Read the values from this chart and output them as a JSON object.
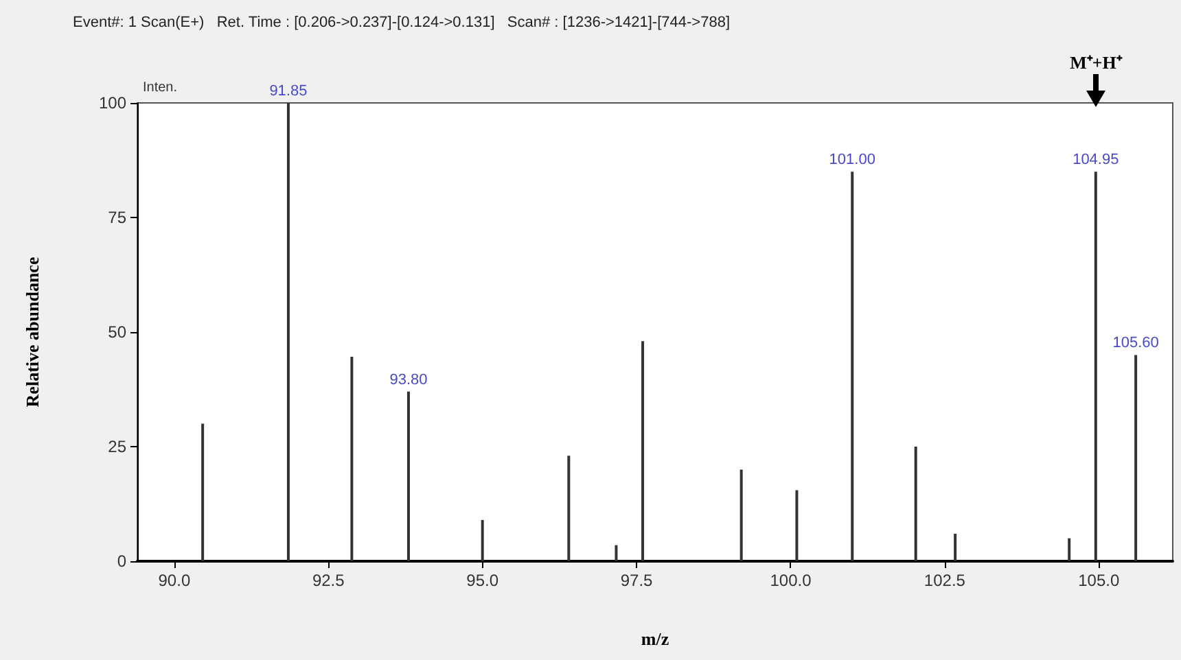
{
  "chart_data": {
    "type": "bar",
    "title": "Event#: 1 Scan(E+)   Ret. Time : [0.206->0.237]-[0.124->0.131]   Scan# : [1236->1421]-[744->788]",
    "xlabel": "m/z",
    "ylabel": "Relative abundance",
    "x": [
      90.46,
      91.85,
      92.88,
      93.8,
      95.0,
      96.4,
      97.17,
      97.6,
      99.2,
      100.1,
      101.0,
      102.03,
      102.67,
      104.52,
      104.95,
      105.6
    ],
    "values": [
      30,
      100,
      44.6,
      37,
      9,
      23,
      3.5,
      48,
      20,
      15.5,
      85,
      25,
      6,
      5,
      85,
      45
    ],
    "color": "#333333",
    "xlim": [
      89.4,
      106.2
    ],
    "xticks": [
      {
        "value": 90,
        "label": "90.0"
      },
      {
        "value": 92.5,
        "label": "92.5"
      },
      {
        "value": 95,
        "label": "95.0"
      },
      {
        "value": 97.5,
        "label": "97.5"
      },
      {
        "value": 100,
        "label": "100.0"
      },
      {
        "value": 102.5,
        "label": "102.5"
      },
      {
        "value": 105,
        "label": "105.0"
      }
    ],
    "ylim": [
      0,
      100
    ],
    "yticks": [
      0,
      25,
      50,
      75,
      100
    ],
    "grid": false,
    "annotations": [
      "Inten.",
      "M⁺+H⁺",
      {
        "text": "91.85",
        "x": 91.85,
        "y": 100
      },
      {
        "text": "93.80",
        "x": 93.8,
        "y": 37
      },
      {
        "text": "101.00",
        "x": 101.0,
        "y": 85
      },
      {
        "text": "104.95",
        "x": 104.95,
        "y": 85
      },
      {
        "text": "105.60",
        "x": 105.6,
        "y": 45
      }
    ]
  }
}
